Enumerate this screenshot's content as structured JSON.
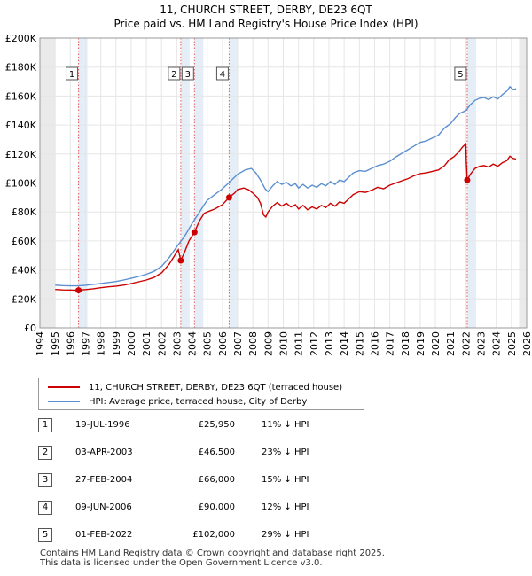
{
  "chart_data": {
    "type": "line",
    "title": "11, CHURCH STREET, DERBY, DE23 6QT",
    "subtitle": "Price paid vs. HM Land Registry's House Price Index (HPI)",
    "xlim": [
      1994,
      2026
    ],
    "ylim": [
      0,
      200000
    ],
    "x_ticks": [
      "1994",
      "1995",
      "1996",
      "1997",
      "1998",
      "1999",
      "2000",
      "2001",
      "2002",
      "2003",
      "2004",
      "2005",
      "2006",
      "2007",
      "2008",
      "2009",
      "2010",
      "2011",
      "2012",
      "2013",
      "2014",
      "2015",
      "2016",
      "2017",
      "2018",
      "2019",
      "2020",
      "2021",
      "2022",
      "2023",
      "2024",
      "2025",
      "2026"
    ],
    "y_ticks": [
      {
        "value": 0,
        "label": "£0"
      },
      {
        "value": 20000,
        "label": "£20K"
      },
      {
        "value": 40000,
        "label": "£40K"
      },
      {
        "value": 60000,
        "label": "£60K"
      },
      {
        "value": 80000,
        "label": "£80K"
      },
      {
        "value": 100000,
        "label": "£100K"
      },
      {
        "value": 120000,
        "label": "£120K"
      },
      {
        "value": 140000,
        "label": "£140K"
      },
      {
        "value": 160000,
        "label": "£160K"
      },
      {
        "value": 180000,
        "label": "£180K"
      },
      {
        "value": 200000,
        "label": "£200K"
      }
    ],
    "series": [
      {
        "name": "11, CHURCH STREET, DERBY, DE23 6QT (terraced house)",
        "color": "#cc0000",
        "points": [
          [
            1995.0,
            26500
          ],
          [
            1995.5,
            26200
          ],
          [
            1996.0,
            26100
          ],
          [
            1996.54,
            25950
          ],
          [
            1997.0,
            26400
          ],
          [
            1997.5,
            27000
          ],
          [
            1998.0,
            27700
          ],
          [
            1998.5,
            28300
          ],
          [
            1999.0,
            28800
          ],
          [
            1999.5,
            29500
          ],
          [
            2000.0,
            30500
          ],
          [
            2000.5,
            31800
          ],
          [
            2001.0,
            33000
          ],
          [
            2001.5,
            34800
          ],
          [
            2002.0,
            38000
          ],
          [
            2002.5,
            44000
          ],
          [
            2002.8,
            49000
          ],
          [
            2003.0,
            52500
          ],
          [
            2003.1,
            54000
          ],
          [
            2003.26,
            46500
          ],
          [
            2003.5,
            52000
          ],
          [
            2003.8,
            60000
          ],
          [
            2004.16,
            66000
          ],
          [
            2004.5,
            74000
          ],
          [
            2004.8,
            79000
          ],
          [
            2005.0,
            80000
          ],
          [
            2005.5,
            82000
          ],
          [
            2006.0,
            85000
          ],
          [
            2006.44,
            90000
          ],
          [
            2006.8,
            93000
          ],
          [
            2007.0,
            95500
          ],
          [
            2007.4,
            96500
          ],
          [
            2007.7,
            95500
          ],
          [
            2008.0,
            93000
          ],
          [
            2008.3,
            90000
          ],
          [
            2008.5,
            86000
          ],
          [
            2008.7,
            78000
          ],
          [
            2008.85,
            76500
          ],
          [
            2009.0,
            80000
          ],
          [
            2009.3,
            84000
          ],
          [
            2009.6,
            86500
          ],
          [
            2009.9,
            84000
          ],
          [
            2010.2,
            86000
          ],
          [
            2010.5,
            83500
          ],
          [
            2010.8,
            85000
          ],
          [
            2011.0,
            82000
          ],
          [
            2011.3,
            84500
          ],
          [
            2011.6,
            81500
          ],
          [
            2011.9,
            83500
          ],
          [
            2012.2,
            82000
          ],
          [
            2012.5,
            84500
          ],
          [
            2012.8,
            83000
          ],
          [
            2013.1,
            86000
          ],
          [
            2013.4,
            84000
          ],
          [
            2013.7,
            87000
          ],
          [
            2014.0,
            86000
          ],
          [
            2014.3,
            89000
          ],
          [
            2014.6,
            92000
          ],
          [
            2015.0,
            94000
          ],
          [
            2015.4,
            93500
          ],
          [
            2015.8,
            95000
          ],
          [
            2016.2,
            97000
          ],
          [
            2016.6,
            96000
          ],
          [
            2017.0,
            98500
          ],
          [
            2017.4,
            100000
          ],
          [
            2017.8,
            101500
          ],
          [
            2018.2,
            103000
          ],
          [
            2018.6,
            105000
          ],
          [
            2019.0,
            106500
          ],
          [
            2019.4,
            107000
          ],
          [
            2019.8,
            108000
          ],
          [
            2020.2,
            109000
          ],
          [
            2020.6,
            112000
          ],
          [
            2020.9,
            116000
          ],
          [
            2021.2,
            118000
          ],
          [
            2021.5,
            121000
          ],
          [
            2021.8,
            125000
          ],
          [
            2022.0,
            127000
          ],
          [
            2022.03,
            115000
          ],
          [
            2022.09,
            102000
          ],
          [
            2022.3,
            106000
          ],
          [
            2022.6,
            110000
          ],
          [
            2022.9,
            111500
          ],
          [
            2023.2,
            112000
          ],
          [
            2023.5,
            111000
          ],
          [
            2023.8,
            113000
          ],
          [
            2024.1,
            111500
          ],
          [
            2024.4,
            114000
          ],
          [
            2024.7,
            115500
          ],
          [
            2024.9,
            118500
          ],
          [
            2025.1,
            117000
          ],
          [
            2025.3,
            116500
          ]
        ]
      },
      {
        "name": "HPI: Average price, terraced house, City of Derby",
        "color": "#5b8fd0",
        "points": [
          [
            1995.0,
            29500
          ],
          [
            1995.5,
            29200
          ],
          [
            1996.0,
            29000
          ],
          [
            1996.5,
            29000
          ],
          [
            1997.0,
            29400
          ],
          [
            1997.5,
            30000
          ],
          [
            1998.0,
            30600
          ],
          [
            1998.5,
            31300
          ],
          [
            1999.0,
            32000
          ],
          [
            1999.5,
            33000
          ],
          [
            2000.0,
            34200
          ],
          [
            2000.5,
            35500
          ],
          [
            2001.0,
            37000
          ],
          [
            2001.5,
            39000
          ],
          [
            2002.0,
            42500
          ],
          [
            2002.5,
            48500
          ],
          [
            2003.0,
            56000
          ],
          [
            2003.5,
            63000
          ],
          [
            2004.0,
            72000
          ],
          [
            2004.5,
            80000
          ],
          [
            2004.8,
            85000
          ],
          [
            2005.0,
            88000
          ],
          [
            2005.5,
            92000
          ],
          [
            2006.0,
            96000
          ],
          [
            2006.5,
            101000
          ],
          [
            2007.0,
            106000
          ],
          [
            2007.5,
            109000
          ],
          [
            2007.9,
            110000
          ],
          [
            2008.2,
            107000
          ],
          [
            2008.5,
            102000
          ],
          [
            2008.8,
            96000
          ],
          [
            2009.0,
            94000
          ],
          [
            2009.3,
            98000
          ],
          [
            2009.6,
            101000
          ],
          [
            2009.9,
            99000
          ],
          [
            2010.2,
            100500
          ],
          [
            2010.5,
            98000
          ],
          [
            2010.8,
            99500
          ],
          [
            2011.0,
            96500
          ],
          [
            2011.3,
            99000
          ],
          [
            2011.6,
            96500
          ],
          [
            2011.9,
            98500
          ],
          [
            2012.2,
            97000
          ],
          [
            2012.5,
            99500
          ],
          [
            2012.8,
            98000
          ],
          [
            2013.1,
            101000
          ],
          [
            2013.4,
            99000
          ],
          [
            2013.7,
            102000
          ],
          [
            2014.0,
            101000
          ],
          [
            2014.3,
            104000
          ],
          [
            2014.6,
            107000
          ],
          [
            2015.0,
            108500
          ],
          [
            2015.4,
            108000
          ],
          [
            2015.8,
            110000
          ],
          [
            2016.2,
            112000
          ],
          [
            2016.6,
            113000
          ],
          [
            2017.0,
            115000
          ],
          [
            2017.4,
            118000
          ],
          [
            2017.8,
            120500
          ],
          [
            2018.2,
            123000
          ],
          [
            2018.6,
            125500
          ],
          [
            2019.0,
            128000
          ],
          [
            2019.4,
            129000
          ],
          [
            2019.8,
            131000
          ],
          [
            2020.2,
            133000
          ],
          [
            2020.6,
            138000
          ],
          [
            2021.0,
            141000
          ],
          [
            2021.3,
            145000
          ],
          [
            2021.6,
            148000
          ],
          [
            2022.0,
            150000
          ],
          [
            2022.3,
            154000
          ],
          [
            2022.6,
            157000
          ],
          [
            2022.9,
            158500
          ],
          [
            2023.2,
            159000
          ],
          [
            2023.5,
            157500
          ],
          [
            2023.8,
            159500
          ],
          [
            2024.1,
            158000
          ],
          [
            2024.4,
            161000
          ],
          [
            2024.7,
            163500
          ],
          [
            2024.9,
            166500
          ],
          [
            2025.1,
            164500
          ],
          [
            2025.3,
            165000
          ]
        ]
      }
    ],
    "sales": [
      {
        "num": "1",
        "x": 1996.54,
        "value": 25950
      },
      {
        "num": "2",
        "x": 2003.26,
        "value": 46500
      },
      {
        "num": "3",
        "x": 2004.16,
        "value": 66000
      },
      {
        "num": "4",
        "x": 2006.44,
        "value": 90000
      },
      {
        "num": "5",
        "x": 2022.09,
        "value": 102000
      }
    ],
    "shaded_periods": [
      [
        1994,
        1995
      ],
      [
        2025.5,
        2026
      ]
    ]
  },
  "legend": {
    "property_label": "11, CHURCH STREET, DERBY, DE23 6QT (terraced house)",
    "hpi_label": "HPI: Average price, terraced house, City of Derby"
  },
  "sales_table": [
    {
      "num": "1",
      "date": "19-JUL-1996",
      "price": "£25,950",
      "hpi": "11% ↓ HPI"
    },
    {
      "num": "2",
      "date": "03-APR-2003",
      "price": "£46,500",
      "hpi": "23% ↓ HPI"
    },
    {
      "num": "3",
      "date": "27-FEB-2004",
      "price": "£66,000",
      "hpi": "15% ↓ HPI"
    },
    {
      "num": "4",
      "date": "09-JUN-2006",
      "price": "£90,000",
      "hpi": "12% ↓ HPI"
    },
    {
      "num": "5",
      "date": "01-FEB-2022",
      "price": "£102,000",
      "hpi": "29% ↓ HPI"
    }
  ],
  "footer": {
    "line1": "Contains HM Land Registry data © Crown copyright and database right 2025.",
    "line2": "This data is licensed under the Open Government Licence v3.0."
  }
}
